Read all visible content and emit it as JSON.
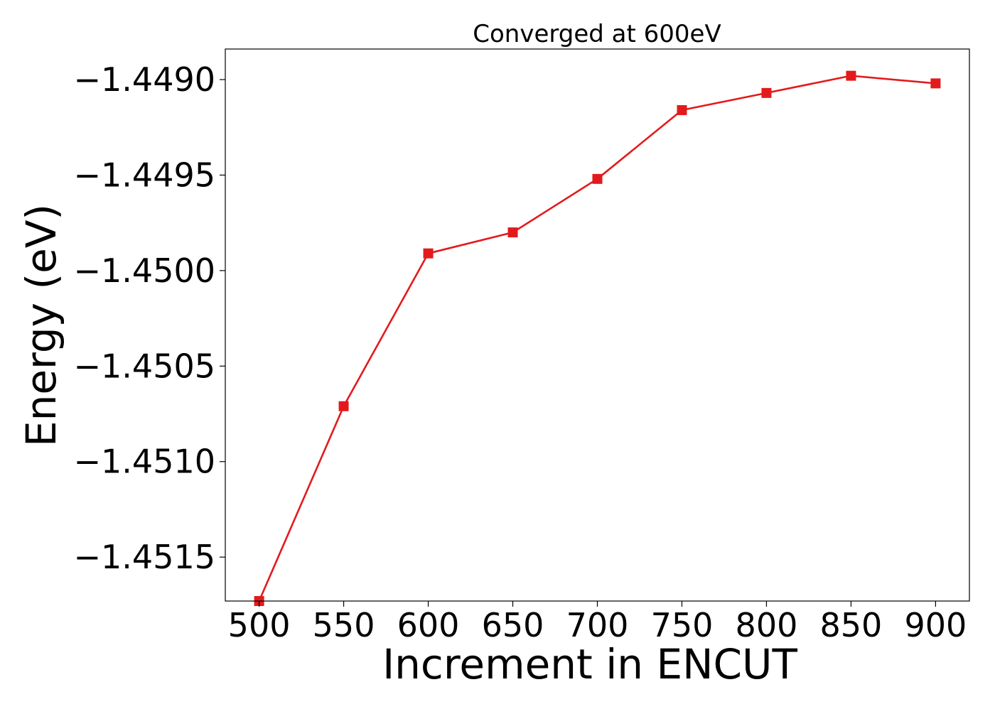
{
  "chart_data": {
    "type": "line",
    "title": "Converged at 600eV",
    "xlabel": "Increment in ENCUT",
    "ylabel": "Energy (eV)",
    "x": [
      500,
      550,
      600,
      650,
      700,
      750,
      800,
      850,
      900
    ],
    "x_tick_labels": [
      "500",
      "550",
      "600",
      "650",
      "700",
      "750",
      "800",
      "850",
      "900"
    ],
    "y_ticks": [
      -1.449,
      -1.4495,
      -1.45,
      -1.4505,
      -1.451,
      -1.4515
    ],
    "y_tick_labels": [
      "−1.4490",
      "−1.4495",
      "−1.4500",
      "−1.4505",
      "−1.4510",
      "−1.4515"
    ],
    "xlim": [
      480,
      920
    ],
    "ylim": [
      -1.45173,
      -1.44884
    ],
    "series": [
      {
        "color": "#e31a1c",
        "marker": "square",
        "values": [
          -1.45173,
          -1.45071,
          -1.44991,
          -1.4498,
          -1.44952,
          -1.44916,
          -1.44907,
          -1.44898,
          -1.44902
        ]
      }
    ],
    "grid": false,
    "legend": false
  }
}
